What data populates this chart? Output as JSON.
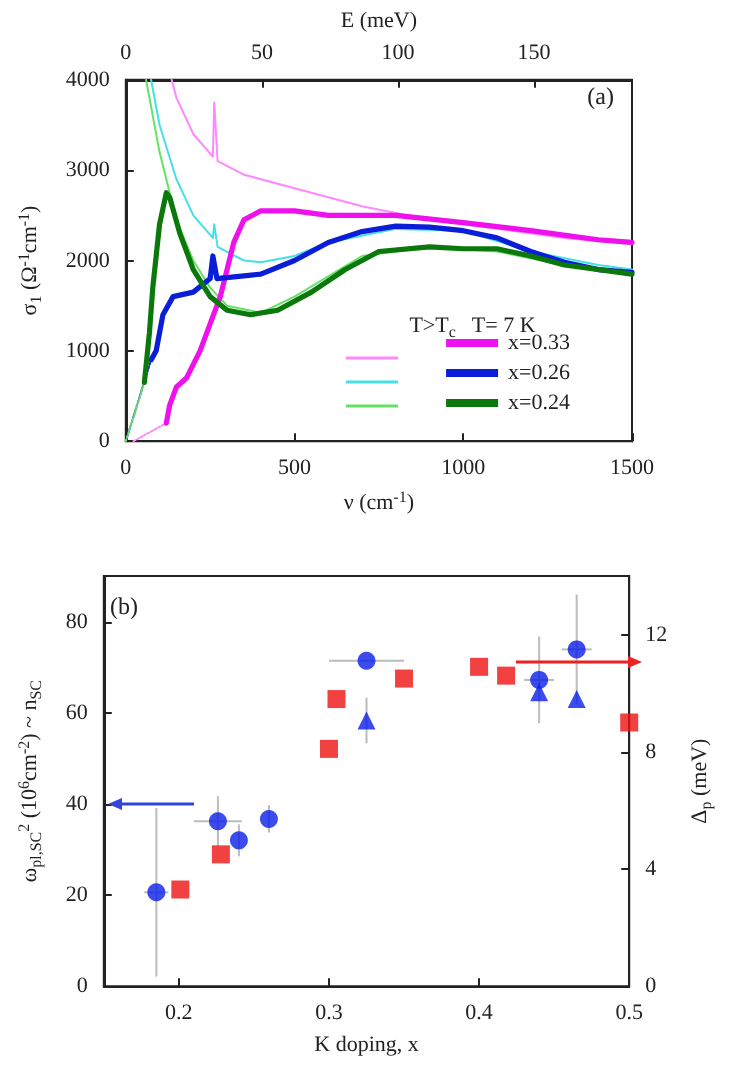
{
  "chart_data": [
    {
      "type": "line",
      "xlabel": "ν (cm$^{-1}$)",
      "ylabel": "σ$_{1}$ (Ω$^{-1}$cm$^{-1}$)",
      "x2label": "E (meV)",
      "legend_title": "T>T$_{c}$   T= 7 K",
      "annotations": [
        "(a)"
      ],
      "xlim": [
        0,
        1500
      ],
      "xticks": [
        0,
        500,
        1000,
        1500
      ],
      "x2lim": [
        0,
        186
      ],
      "x2ticks": [
        0,
        50,
        100,
        150
      ],
      "ylim": [
        0,
        4000
      ],
      "yticks": [
        0,
        1000,
        2000,
        3000,
        4000
      ],
      "grid": false,
      "legend": "bottom right",
      "line_style": "solid",
      "series": [
        {
          "color": "#ff88ff",
          "x": [
            136,
            150,
            200,
            258,
            262,
            272,
            350,
            500,
            700,
            900,
            1100,
            1300,
            1500
          ],
          "values": [
            4000,
            3800,
            3400,
            3150,
            3750,
            3100,
            2950,
            2800,
            2600,
            2450,
            2350,
            2250,
            2180
          ]
        },
        {
          "name": "x=0.33",
          "color": "#ee11ee",
          "x": [
            120,
            130,
            150,
            180,
            220,
            260,
            280,
            300,
            320,
            350,
            400,
            500,
            600,
            800,
            1000,
            1200,
            1400,
            1500
          ],
          "values": [
            200,
            400,
            600,
            700,
            1000,
            1400,
            1600,
            1900,
            2200,
            2450,
            2550,
            2550,
            2500,
            2500,
            2420,
            2330,
            2230,
            2200
          ]
        },
        {
          "color": "#44e0e8",
          "x": [
            75,
            100,
            150,
            200,
            258,
            262,
            272,
            350,
            400,
            500,
            600,
            800,
            1000,
            1200,
            1400,
            1500
          ],
          "values": [
            4000,
            3500,
            2900,
            2500,
            2250,
            2400,
            2150,
            2000,
            1980,
            2050,
            2200,
            2350,
            2330,
            2100,
            1950,
            1900
          ]
        },
        {
          "name": "x=0.26",
          "color": "#0a1ed8",
          "x": [
            75,
            90,
            110,
            140,
            200,
            250,
            258,
            270,
            400,
            500,
            600,
            700,
            800,
            900,
            1000,
            1100,
            1200,
            1300,
            1400,
            1500
          ],
          "values": [
            900,
            1000,
            1400,
            1600,
            1650,
            1800,
            2050,
            1800,
            1850,
            2000,
            2200,
            2320,
            2380,
            2370,
            2330,
            2250,
            2100,
            1980,
            1900,
            1870
          ]
        },
        {
          "color": "#66e066",
          "x": [
            60,
            100,
            150,
            200,
            250,
            300,
            400,
            500,
            700,
            900,
            1100,
            1300,
            1500
          ],
          "values": [
            4000,
            3200,
            2450,
            2000,
            1700,
            1500,
            1420,
            1600,
            2050,
            2150,
            2100,
            1950,
            1850
          ]
        },
        {
          "name": "x=0.24",
          "color": "#0a780a",
          "x": [
            55,
            70,
            80,
            100,
            120,
            130,
            160,
            200,
            250,
            300,
            370,
            450,
            550,
            650,
            750,
            900,
            1000,
            1100,
            1200,
            1300,
            1500
          ],
          "values": [
            650,
            1200,
            1700,
            2400,
            2750,
            2700,
            2300,
            1900,
            1600,
            1450,
            1400,
            1450,
            1650,
            1900,
            2100,
            2150,
            2130,
            2130,
            2050,
            1950,
            1850
          ]
        },
        {
          "color": "#ff88ff",
          "line_style": "dotted",
          "x": [
            23,
            120
          ],
          "values": [
            0,
            200
          ]
        },
        {
          "color": "#0a1ed8",
          "line_style": "dotted",
          "x": [
            0,
            75
          ],
          "values": [
            0,
            900
          ]
        },
        {
          "color": "#66e066",
          "line_style": "dotted",
          "x": [
            0,
            55
          ],
          "values": [
            0,
            650
          ]
        }
      ]
    },
    {
      "type": "scatter",
      "xlabel": "K doping, x",
      "ylabel": "ω$_{pl,SC}$$^{2}$ (10$^{6}$cm$^{-2}$) ~ n$_{SC}$",
      "y2label": "Δ$_{p}$ (meV)",
      "annotations": [
        "(b)"
      ],
      "xlim": [
        0.15,
        0.5
      ],
      "xticks": [
        0.2,
        0.3,
        0.4,
        0.5
      ],
      "ylim": [
        0,
        90
      ],
      "yticks": [
        0,
        20,
        40,
        60,
        80
      ],
      "y2lim": [
        0,
        14
      ],
      "y2ticks": [
        0,
        4,
        8,
        12
      ],
      "grid": false,
      "legend": false,
      "series": [
        {
          "color": "#0a1ee8",
          "marker": "circle",
          "x": [
            0.185,
            0.226,
            0.24,
            0.26,
            0.325,
            0.44,
            0.465
          ],
          "values": [
            20.6,
            36.2,
            32.0,
            36.7,
            71.4,
            67.2,
            73.9
          ],
          "errors": [
            18.5,
            5.5,
            3.5,
            3,
            null,
            9.5,
            12
          ],
          "xerrors": [
            0.008,
            0.016,
            null,
            null,
            0.025,
            0.01,
            0.01
          ]
        },
        {
          "color": "#0a1ee8",
          "marker": "triangle",
          "x": [
            0.325,
            0.44,
            0.465
          ],
          "values": [
            58.3,
            64.5,
            63.0
          ],
          "errors": [
            5,
            null,
            null
          ]
        },
        {
          "color": "#ee1111",
          "marker": "square",
          "axis": "y2",
          "x": [
            0.201,
            0.3,
            0.4,
            0.5
          ],
          "values": [
            3.3,
            8.1,
            10.9,
            9.0
          ]
        },
        {
          "color": "#ee1111",
          "marker": "square",
          "axis": "y2",
          "x": [
            0.228,
            0.305,
            0.35,
            0.418
          ],
          "values": [
            4.5,
            9.8,
            10.5,
            10.6
          ]
        }
      ]
    }
  ]
}
